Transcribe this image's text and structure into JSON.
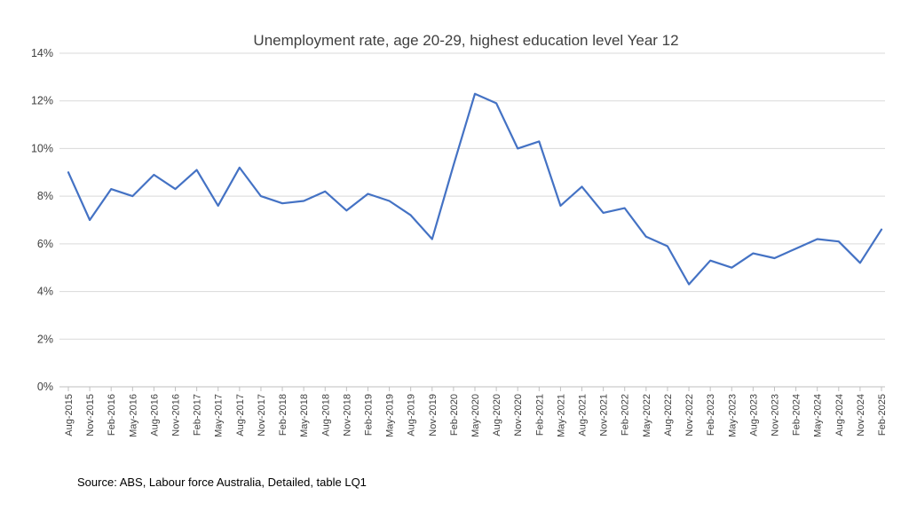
{
  "colors": {
    "series": "#4472c4",
    "grid": "#d9d9d9",
    "text": "#404040"
  },
  "chart_data": {
    "type": "line",
    "title": "Unemployment rate, age 20-29, highest education level Year 12",
    "xlabel": "",
    "ylabel": "",
    "ylim": [
      0,
      14
    ],
    "yticks": [
      0,
      2,
      4,
      6,
      8,
      10,
      12,
      14
    ],
    "ytick_labels": [
      "0%",
      "2%",
      "4%",
      "6%",
      "8%",
      "10%",
      "12%",
      "14%"
    ],
    "grid": true,
    "legend": "none",
    "categories": [
      "Aug-2015",
      "Nov-2015",
      "Feb-2016",
      "May-2016",
      "Aug-2016",
      "Nov-2016",
      "Feb-2017",
      "May-2017",
      "Aug-2017",
      "Nov-2017",
      "Feb-2018",
      "May-2018",
      "Aug-2018",
      "Nov-2018",
      "Feb-2019",
      "May-2019",
      "Aug-2019",
      "Nov-2019",
      "Feb-2020",
      "May-2020",
      "Aug-2020",
      "Nov-2020",
      "Feb-2021",
      "May-2021",
      "Aug-2021",
      "Nov-2021",
      "Feb-2022",
      "May-2022",
      "Aug-2022",
      "Nov-2022",
      "Feb-2023",
      "May-2023",
      "Aug-2023",
      "Nov-2023",
      "Feb-2024",
      "May-2024",
      "Aug-2024",
      "Nov-2024",
      "Feb-2025"
    ],
    "series": [
      {
        "values": [
          9.0,
          7.0,
          8.3,
          8.0,
          8.9,
          8.3,
          9.1,
          7.6,
          9.2,
          8.0,
          7.7,
          7.8,
          8.2,
          7.4,
          8.1,
          7.8,
          7.2,
          6.2,
          9.3,
          12.3,
          11.9,
          10.0,
          10.3,
          7.6,
          8.4,
          7.3,
          7.5,
          6.3,
          5.9,
          4.3,
          5.3,
          5.0,
          5.6,
          5.4,
          5.8,
          6.2,
          6.1,
          5.2,
          6.6
        ]
      }
    ]
  },
  "footer": {
    "source": "Source: ABS, Labour force Australia, Detailed, table LQ1"
  }
}
